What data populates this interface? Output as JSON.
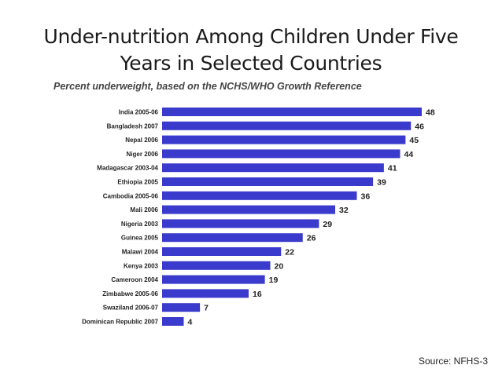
{
  "slide": {
    "title_line1": "Under-nutrition Among Children Under Five",
    "title_line2": "Years in Selected Countries",
    "source": "Source: NFHS-3"
  },
  "colors": {
    "bar": "#3a3acc",
    "text": "#222222"
  },
  "chart_data": {
    "type": "bar",
    "orientation": "horizontal",
    "title": "Percent underweight, based on the NCHS/WHO Growth Reference",
    "categories": [
      "India 2005-06",
      "Bangladesh 2007",
      "Nepal 2006",
      "Niger 2006",
      "Madagascar 2003-04",
      "Ethiopia 2005",
      "Cambodia 2005-06",
      "Mali 2006",
      "Nigeria 2003",
      "Guinea 2005",
      "Malawi 2004",
      "Kenya 2003",
      "Cameroon 2004",
      "Zimbabwe 2005-06",
      "Swaziland 2006-07",
      "Dominican Republic 2007"
    ],
    "values": [
      48,
      46,
      45,
      44,
      41,
      39,
      36,
      32,
      29,
      26,
      22,
      20,
      19,
      16,
      7,
      4
    ],
    "xlabel": "",
    "ylabel": "",
    "xlim": [
      0,
      48
    ]
  }
}
